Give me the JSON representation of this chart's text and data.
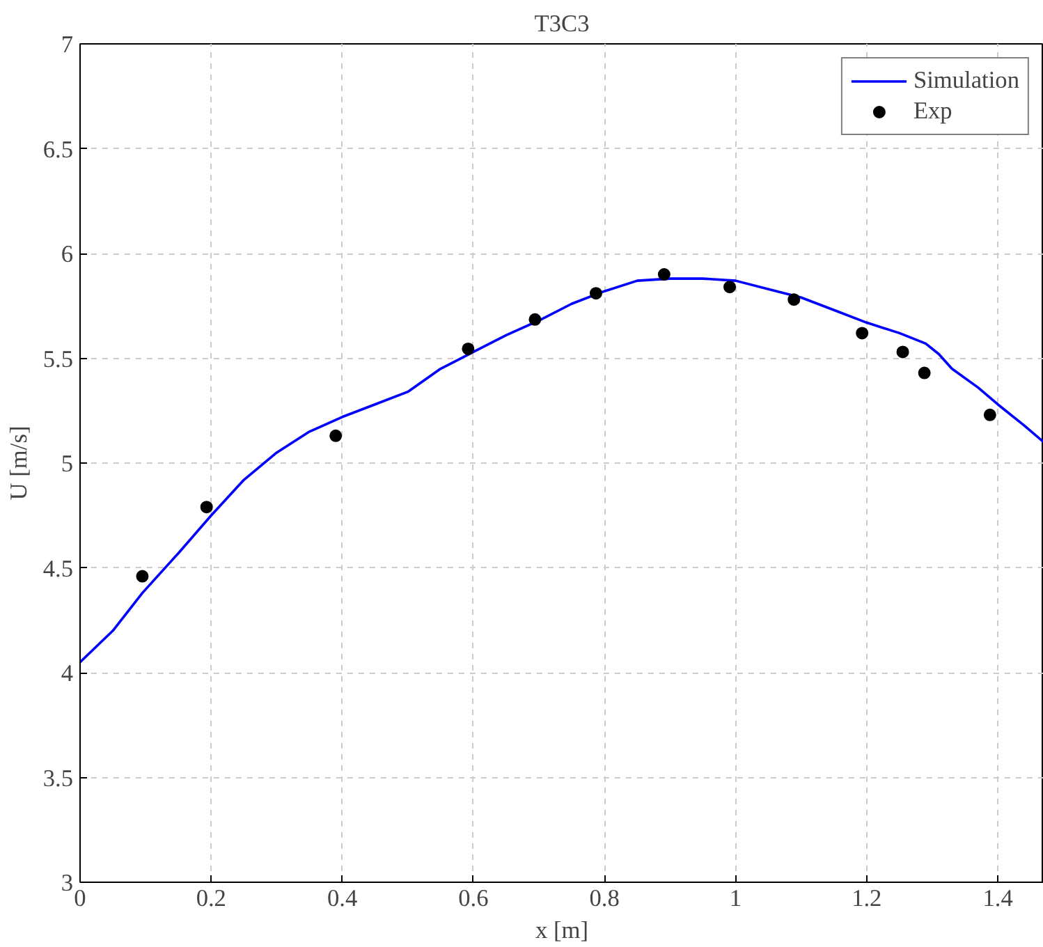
{
  "chart_data": {
    "type": "line",
    "title": "T3C3",
    "xlabel": "x [m]",
    "ylabel": "U [m/s]",
    "xlim": [
      0,
      1.47
    ],
    "ylim": [
      3,
      7
    ],
    "xticks": [
      0,
      0.2,
      0.4,
      0.6,
      0.8,
      1,
      1.2,
      1.4
    ],
    "yticks": [
      3,
      3.5,
      4,
      4.5,
      5,
      5.5,
      6,
      6.5,
      7
    ],
    "grid": true,
    "legend": "top right",
    "series": [
      {
        "name": "Simulation",
        "color": "#0000ff",
        "marker": "none",
        "line_style": "solid",
        "x": [
          0,
          0.05,
          0.095,
          0.15,
          0.2,
          0.25,
          0.3,
          0.35,
          0.4,
          0.45,
          0.5,
          0.55,
          0.6,
          0.65,
          0.7,
          0.75,
          0.8,
          0.85,
          0.9,
          0.95,
          1.0,
          1.05,
          1.1,
          1.15,
          1.2,
          1.25,
          1.29,
          1.31,
          1.33,
          1.37,
          1.4,
          1.44,
          1.47
        ],
        "values": [
          4.05,
          4.2,
          4.38,
          4.57,
          4.75,
          4.92,
          5.05,
          5.15,
          5.22,
          5.28,
          5.34,
          5.45,
          5.53,
          5.61,
          5.68,
          5.76,
          5.82,
          5.87,
          5.88,
          5.88,
          5.87,
          5.83,
          5.79,
          5.73,
          5.67,
          5.62,
          5.57,
          5.52,
          5.45,
          5.36,
          5.28,
          5.18,
          5.1
        ]
      },
      {
        "name": "Exp",
        "type": "scatter",
        "color": "#000000",
        "marker": "circle",
        "x": [
          0.095,
          0.193,
          0.39,
          0.592,
          0.694,
          0.787,
          0.891,
          0.991,
          1.089,
          1.193,
          1.255,
          1.288,
          1.388
        ],
        "values": [
          4.46,
          4.79,
          5.13,
          5.545,
          5.685,
          5.81,
          5.9,
          5.84,
          5.78,
          5.62,
          5.53,
          5.43,
          5.23
        ]
      }
    ]
  }
}
